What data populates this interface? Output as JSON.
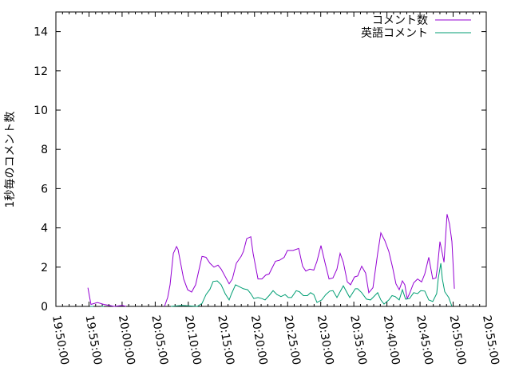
{
  "chart_data": {
    "type": "line",
    "title": "",
    "xlabel": "",
    "ylabel": "1秒毎のコメント数",
    "xlim": [
      "19:50:00",
      "20:55:00"
    ],
    "ylim": [
      0,
      15
    ],
    "x_ticks": [
      "19:50:00",
      "19:55:00",
      "20:00:00",
      "20:05:00",
      "20:10:00",
      "20:15:00",
      "20:20:00",
      "20:25:00",
      "20:30:00",
      "20:35:00",
      "20:40:00",
      "20:45:00",
      "20:50:00",
      "20:55:00"
    ],
    "y_ticks": [
      0,
      2,
      4,
      6,
      8,
      10,
      12,
      14
    ],
    "grid": false,
    "legend_position": "top-right",
    "series": [
      {
        "name": "コメント数",
        "color": "#9400d3",
        "points": [
          [
            "19:54:50",
            0.95
          ],
          [
            "19:55:18",
            0.1
          ],
          [
            "19:56:16",
            0.2
          ],
          [
            "19:57:14",
            0.1
          ],
          [
            "19:58:05",
            0.05
          ],
          [
            "19:58:48",
            0
          ],
          [
            "20:00:01",
            0.05
          ],
          [
            "20:00:37",
            0
          ],
          null,
          [
            "20:06:24",
            0
          ],
          [
            "20:06:53",
            0.45
          ],
          [
            "20:07:15",
            1.1
          ],
          [
            "20:07:44",
            2.7
          ],
          [
            "20:08:13",
            3.05
          ],
          [
            "20:08:27",
            2.9
          ],
          [
            "20:09:18",
            1.4
          ],
          [
            "20:09:54",
            0.85
          ],
          [
            "20:10:30",
            0.73
          ],
          [
            "20:11:06",
            1.1
          ],
          [
            "20:12:04",
            2.55
          ],
          [
            "20:12:40",
            2.5
          ],
          [
            "20:13:16",
            2.2
          ],
          [
            "20:13:53",
            2.0
          ],
          [
            "20:14:29",
            2.1
          ],
          [
            "20:14:58",
            1.9
          ],
          [
            "20:16:10",
            1.15
          ],
          [
            "20:16:39",
            1.4
          ],
          [
            "20:17:15",
            2.2
          ],
          [
            "20:17:59",
            2.55
          ],
          [
            "20:18:20",
            2.8
          ],
          [
            "20:18:49",
            3.45
          ],
          [
            "20:19:26",
            3.55
          ],
          [
            "20:19:47",
            2.7
          ],
          [
            "20:20:31",
            1.4
          ],
          [
            "20:21:07",
            1.4
          ],
          [
            "20:21:43",
            1.6
          ],
          [
            "20:22:12",
            1.65
          ],
          [
            "20:23:10",
            2.3
          ],
          [
            "20:23:46",
            2.35
          ],
          [
            "20:24:29",
            2.5
          ],
          [
            "20:24:58",
            2.85
          ],
          [
            "20:25:49",
            2.85
          ],
          [
            "20:26:40",
            2.95
          ],
          [
            "20:27:16",
            2.05
          ],
          [
            "20:27:45",
            1.8
          ],
          [
            "20:28:21",
            1.9
          ],
          [
            "20:28:57",
            1.85
          ],
          [
            "20:29:26",
            2.3
          ],
          [
            "20:30:02",
            3.1
          ],
          [
            "20:30:38",
            2.25
          ],
          [
            "20:31:15",
            1.4
          ],
          [
            "20:31:51",
            1.45
          ],
          [
            "20:32:27",
            1.9
          ],
          [
            "20:32:56",
            2.7
          ],
          [
            "20:33:25",
            2.25
          ],
          [
            "20:34:01",
            1.25
          ],
          [
            "20:34:30",
            1.1
          ],
          [
            "20:35:06",
            1.5
          ],
          [
            "20:35:35",
            1.55
          ],
          [
            "20:36:11",
            2.05
          ],
          [
            "20:36:47",
            1.7
          ],
          [
            "20:37:16",
            0.7
          ],
          [
            "20:37:53",
            0.95
          ],
          [
            "20:38:36",
            2.7
          ],
          [
            "20:39:05",
            3.75
          ],
          [
            "20:39:41",
            3.35
          ],
          [
            "20:40:17",
            2.8
          ],
          [
            "20:40:53",
            1.95
          ],
          [
            "20:41:22",
            1.15
          ],
          [
            "20:41:51",
            0.85
          ],
          [
            "20:42:20",
            1.3
          ],
          [
            "20:42:42",
            1.1
          ],
          [
            "20:43:04",
            0.4
          ],
          [
            "20:43:25",
            0.65
          ],
          [
            "20:44:02",
            1.2
          ],
          [
            "20:44:38",
            1.4
          ],
          [
            "20:45:14",
            1.25
          ],
          [
            "20:45:43",
            1.65
          ],
          [
            "20:46:19",
            2.5
          ],
          [
            "20:46:55",
            1.4
          ],
          [
            "20:47:24",
            1.45
          ],
          [
            "20:47:38",
            2.0
          ],
          [
            "20:48:00",
            3.3
          ],
          [
            "20:48:15",
            2.9
          ],
          [
            "20:48:37",
            2.25
          ],
          [
            "20:49:05",
            4.7
          ],
          [
            "20:49:27",
            4.2
          ],
          [
            "20:49:49",
            3.3
          ],
          [
            "20:50:11",
            0.9
          ]
        ]
      },
      {
        "name": "英語コメント",
        "color": "#009e73",
        "points": [
          [
            "19:55:10",
            0
          ],
          [
            "19:55:40",
            0
          ],
          null,
          [
            "19:56:50",
            0
          ],
          [
            "19:57:15",
            0
          ],
          null,
          [
            "20:07:22",
            0
          ],
          [
            "20:09:03",
            0.05
          ],
          [
            "20:11:21",
            0
          ],
          [
            "20:12:04",
            0.15
          ],
          [
            "20:12:40",
            0.6
          ],
          [
            "20:13:16",
            0.87
          ],
          [
            "20:13:45",
            1.27
          ],
          [
            "20:14:22",
            1.3
          ],
          [
            "20:14:58",
            1.1
          ],
          [
            "20:15:34",
            0.65
          ],
          [
            "20:16:10",
            0.33
          ],
          [
            "20:16:32",
            0.65
          ],
          [
            "20:17:08",
            1.1
          ],
          [
            "20:17:44",
            1.0
          ],
          [
            "20:18:20",
            0.9
          ],
          [
            "20:18:57",
            0.85
          ],
          [
            "20:19:26",
            0.65
          ],
          [
            "20:19:54",
            0.4
          ],
          [
            "20:20:31",
            0.45
          ],
          [
            "20:21:07",
            0.4
          ],
          [
            "20:21:36",
            0.33
          ],
          [
            "20:22:12",
            0.55
          ],
          [
            "20:22:48",
            0.8
          ],
          [
            "20:23:24",
            0.6
          ],
          [
            "20:24:00",
            0.5
          ],
          [
            "20:24:37",
            0.6
          ],
          [
            "20:25:06",
            0.45
          ],
          [
            "20:25:35",
            0.45
          ],
          [
            "20:26:18",
            0.8
          ],
          [
            "20:26:47",
            0.75
          ],
          [
            "20:27:23",
            0.55
          ],
          [
            "20:27:59",
            0.55
          ],
          [
            "20:28:28",
            0.7
          ],
          [
            "20:28:57",
            0.6
          ],
          [
            "20:29:26",
            0.2
          ],
          [
            "20:30:09",
            0.33
          ],
          [
            "20:30:46",
            0.6
          ],
          [
            "20:31:22",
            0.78
          ],
          [
            "20:31:51",
            0.8
          ],
          [
            "20:32:27",
            0.45
          ],
          [
            "20:33:25",
            1.05
          ],
          [
            "20:34:23",
            0.45
          ],
          [
            "20:35:13",
            0.9
          ],
          [
            "20:35:35",
            0.9
          ],
          [
            "20:36:11",
            0.7
          ],
          [
            "20:36:55",
            0.37
          ],
          [
            "20:37:31",
            0.33
          ],
          [
            "20:37:53",
            0.45
          ],
          [
            "20:38:36",
            0.7
          ],
          [
            "20:39:05",
            0.33
          ],
          [
            "20:39:34",
            0.12
          ],
          [
            "20:40:17",
            0.33
          ],
          [
            "20:40:46",
            0.55
          ],
          [
            "20:41:15",
            0.5
          ],
          [
            "20:41:51",
            0.33
          ],
          [
            "20:42:20",
            0.85
          ],
          [
            "20:42:49",
            0.37
          ],
          [
            "20:43:25",
            0.4
          ],
          [
            "20:44:02",
            0.7
          ],
          [
            "20:44:38",
            0.65
          ],
          [
            "20:45:07",
            0.8
          ],
          [
            "20:45:43",
            0.78
          ],
          [
            "20:46:19",
            0.33
          ],
          [
            "20:46:55",
            0.25
          ],
          [
            "20:47:31",
            0.65
          ],
          [
            "20:47:46",
            1.45
          ],
          [
            "20:48:08",
            2.2
          ],
          [
            "20:48:22",
            1.4
          ],
          [
            "20:48:44",
            0.75
          ],
          [
            "20:49:20",
            0.45
          ],
          [
            "20:49:49",
            0
          ]
        ]
      }
    ]
  }
}
